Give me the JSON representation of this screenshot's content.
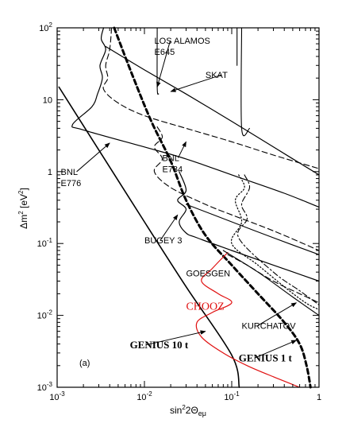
{
  "chart_data": {
    "type": "line",
    "panel_label": "(a)",
    "xlabel": "sin²2Θeμ",
    "ylabel": "Δm² [eV²]",
    "xscale": "log",
    "yscale": "log",
    "xlim": [
      0.001,
      1
    ],
    "ylim": [
      0.001,
      100
    ],
    "x_ticks": [
      {
        "value": 0.001,
        "base": "10",
        "exp": "-3"
      },
      {
        "value": 0.01,
        "base": "10",
        "exp": "-2"
      },
      {
        "value": 0.1,
        "base": "10",
        "exp": "-1"
      },
      {
        "value": 1,
        "base": "1",
        "exp": ""
      }
    ],
    "y_ticks": [
      {
        "value": 0.001,
        "base": "10",
        "exp": "-3"
      },
      {
        "value": 0.01,
        "base": "10",
        "exp": "-2"
      },
      {
        "value": 0.1,
        "base": "10",
        "exp": "-1"
      },
      {
        "value": 1,
        "base": "1",
        "exp": ""
      },
      {
        "value": 10,
        "base": "10",
        "exp": ""
      },
      {
        "value": 100,
        "base": "10",
        "exp": "2"
      }
    ],
    "series": [
      {
        "id": "genius10",
        "style": "solid",
        "color": "#000000",
        "width": 1.6,
        "points": [
          [
            0.00105,
            15
          ],
          [
            0.003,
            2
          ],
          [
            0.01,
            0.2
          ],
          [
            0.03,
            0.025
          ],
          [
            0.1,
            0.0028
          ],
          [
            0.122,
            0.001
          ]
        ]
      },
      {
        "id": "genius1",
        "style": "bold-dashed",
        "color": "#000000",
        "width": 3,
        "points": [
          [
            0.0045,
            100
          ],
          [
            0.0075,
            20
          ],
          [
            0.012,
            5
          ],
          [
            0.02,
            1.4
          ],
          [
            0.03,
            0.4
          ],
          [
            0.05,
            0.13
          ],
          [
            0.1,
            0.05
          ],
          [
            0.2,
            0.02
          ],
          [
            0.4,
            0.008
          ],
          [
            0.6,
            0.004
          ],
          [
            0.72,
            0.002
          ],
          [
            0.8,
            0.001
          ]
        ]
      },
      {
        "id": "chooz",
        "style": "solid",
        "color": "#e01010",
        "width": 1.2,
        "points": [
          [
            0.09,
            0.075
          ],
          [
            0.06,
            0.045
          ],
          [
            0.045,
            0.03
          ],
          [
            0.07,
            0.02
          ],
          [
            0.1,
            0.015
          ],
          [
            0.06,
            0.011
          ],
          [
            0.04,
            0.008
          ],
          [
            0.045,
            0.005
          ],
          [
            0.08,
            0.003
          ],
          [
            0.15,
            0.002
          ],
          [
            0.3,
            0.0014
          ],
          [
            0.6,
            0.001
          ]
        ]
      },
      {
        "id": "bnl776",
        "style": "solid",
        "color": "#000000",
        "width": 1.2,
        "points": [
          [
            0.0034,
            100
          ],
          [
            0.0032,
            70
          ],
          [
            0.0036,
            50
          ],
          [
            0.0031,
            30
          ],
          [
            0.0033,
            20
          ],
          [
            0.0029,
            12
          ],
          [
            0.0025,
            8
          ],
          [
            0.0015,
            4.5
          ],
          [
            0.002,
            3.8
          ],
          [
            0.01,
            2.2
          ],
          [
            0.03,
            1.5
          ],
          [
            0.1,
            0.9
          ],
          [
            0.4,
            0.5
          ],
          [
            1,
            0.32
          ]
        ]
      },
      {
        "id": "bnl734",
        "style": "dashed",
        "color": "#000000",
        "width": 1.1,
        "points": [
          [
            0.0042,
            100
          ],
          [
            0.004,
            50
          ],
          [
            0.0036,
            30
          ],
          [
            0.0038,
            20
          ],
          [
            0.0034,
            14
          ],
          [
            0.005,
            9
          ],
          [
            0.01,
            6
          ],
          [
            0.03,
            4
          ],
          [
            0.1,
            2.6
          ],
          [
            0.3,
            1.7
          ],
          [
            1,
            1.1
          ]
        ]
      },
      {
        "id": "bnl734b",
        "style": "dashed",
        "color": "#000000",
        "width": 1.1,
        "points": [
          [
            0.014,
            4.2
          ],
          [
            0.016,
            3
          ],
          [
            0.013,
            2.2
          ],
          [
            0.016,
            1.5
          ],
          [
            0.013,
            1
          ],
          [
            0.02,
            0.6
          ],
          [
            0.05,
            0.35
          ],
          [
            0.1,
            0.25
          ],
          [
            0.3,
            0.15
          ],
          [
            1,
            0.08
          ]
        ]
      },
      {
        "id": "losalamos",
        "style": "solid",
        "color": "#000000",
        "width": 1.1,
        "points": [
          [
            0.014,
            100
          ],
          [
            0.014,
            15
          ],
          [
            0.0145,
            12
          ]
        ]
      },
      {
        "id": "skat",
        "style": "solid",
        "color": "#000000",
        "width": 1.2,
        "points": [
          [
            0.0036,
            55
          ],
          [
            0.01,
            26
          ],
          [
            0.03,
            12
          ],
          [
            0.1,
            5
          ],
          [
            0.3,
            2.2
          ],
          [
            1,
            0.9
          ]
        ]
      },
      {
        "id": "skat-vert",
        "style": "solid",
        "color": "#000000",
        "width": 1.1,
        "points": [
          [
            0.13,
            100
          ],
          [
            0.13,
            4
          ],
          [
            0.16,
            4
          ]
        ]
      },
      {
        "id": "losalamos-vert",
        "style": "solid",
        "color": "#000000",
        "width": 1.1,
        "points": [
          [
            0.115,
            100
          ],
          [
            0.115,
            30
          ]
        ]
      },
      {
        "id": "bugey",
        "style": "solid",
        "color": "#000000",
        "width": 1.2,
        "points": [
          [
            0.025,
            1
          ],
          [
            0.03,
            0.55
          ],
          [
            0.024,
            0.4
          ],
          [
            0.03,
            0.3
          ],
          [
            0.025,
            0.2
          ],
          [
            0.03,
            0.14
          ],
          [
            0.04,
            0.12
          ],
          [
            0.1,
            0.08
          ],
          [
            0.3,
            0.05
          ],
          [
            1,
            0.03
          ]
        ]
      },
      {
        "id": "goesgen",
        "style": "solid",
        "color": "#000000",
        "width": 1.1,
        "points": [
          [
            0.03,
            0.35
          ],
          [
            0.1,
            0.2
          ],
          [
            0.3,
            0.12
          ],
          [
            1,
            0.07
          ]
        ]
      },
      {
        "id": "krasn",
        "style": "dashed",
        "color": "#000000",
        "width": 1.1,
        "points": [
          [
            0.09,
            0.07
          ],
          [
            0.15,
            0.05
          ],
          [
            0.3,
            0.03
          ],
          [
            0.6,
            0.02
          ],
          [
            1,
            0.015
          ]
        ]
      },
      {
        "id": "kurchatov",
        "style": "dotted",
        "color": "#000000",
        "width": 1.2,
        "points": [
          [
            0.12,
            0.9
          ],
          [
            0.14,
            0.6
          ],
          [
            0.11,
            0.4
          ],
          [
            0.13,
            0.2
          ],
          [
            0.1,
            0.1
          ],
          [
            0.2,
            0.05
          ],
          [
            0.4,
            0.025
          ],
          [
            0.7,
            0.015
          ],
          [
            1,
            0.012
          ]
        ]
      },
      {
        "id": "kurchatov-dd",
        "style": "dashdot",
        "color": "#000000",
        "width": 1.1,
        "points": [
          [
            0.14,
            0.9
          ],
          [
            0.16,
            0.6
          ],
          [
            0.13,
            0.35
          ],
          [
            0.15,
            0.22
          ],
          [
            0.12,
            0.12
          ],
          [
            0.3,
            0.04
          ],
          [
            0.6,
            0.022
          ],
          [
            1,
            0.014
          ]
        ]
      },
      {
        "id": "extra-solid",
        "style": "solid",
        "color": "#000000",
        "width": 1.1,
        "points": [
          [
            0.08,
            0.08
          ],
          [
            0.2,
            0.04
          ],
          [
            0.5,
            0.018
          ],
          [
            1,
            0.01
          ]
        ]
      }
    ],
    "annotations": [
      {
        "id": "los",
        "lines": [
          "LOS ALAMOS",
          "E645"
        ],
        "x": 0.013,
        "y": 60,
        "font": "sans",
        "arrow": [
          0.014,
          15
        ]
      },
      {
        "id": "skat",
        "lines": [
          "SKAT"
        ],
        "x": 0.05,
        "y": 20,
        "font": "sans",
        "arrow": [
          0.02,
          13
        ]
      },
      {
        "id": "bnl734",
        "lines": [
          "BNL",
          "E734"
        ],
        "x": 0.016,
        "y": 1.4,
        "font": "sans",
        "arrow": [
          0.03,
          2.6
        ]
      },
      {
        "id": "bnl776",
        "lines": [
          "BNL",
          "E776"
        ],
        "x": 0.0011,
        "y": 0.9,
        "font": "sans",
        "arrow": [
          0.004,
          2.5
        ]
      },
      {
        "id": "bugey",
        "lines": [
          "BUGEY 3"
        ],
        "x": 0.01,
        "y": 0.1,
        "font": "sans",
        "arrow": [
          0.024,
          0.25
        ]
      },
      {
        "id": "goesgen",
        "lines": [
          "GOESGEN"
        ],
        "x": 0.03,
        "y": 0.035,
        "font": "sans",
        "arrow": null
      },
      {
        "id": "chooz",
        "lines": [
          "CHOOZ"
        ],
        "x": 0.03,
        "y": 0.012,
        "font": "red",
        "arrow": null
      },
      {
        "id": "kurchatov",
        "lines": [
          "KURCHATOV"
        ],
        "x": 0.13,
        "y": 0.0065,
        "font": "sans",
        "arrow": [
          0.55,
          0.015
        ]
      },
      {
        "id": "genius10",
        "lines": [
          "GENIUS 10 t"
        ],
        "x": 0.0068,
        "y": 0.0035,
        "font": "serif",
        "arrow": [
          0.05,
          0.006
        ]
      },
      {
        "id": "genius1",
        "lines": [
          "GENIUS 1 t"
        ],
        "x": 0.12,
        "y": 0.0023,
        "font": "serif",
        "arrow": [
          0.55,
          0.0045
        ]
      }
    ]
  }
}
